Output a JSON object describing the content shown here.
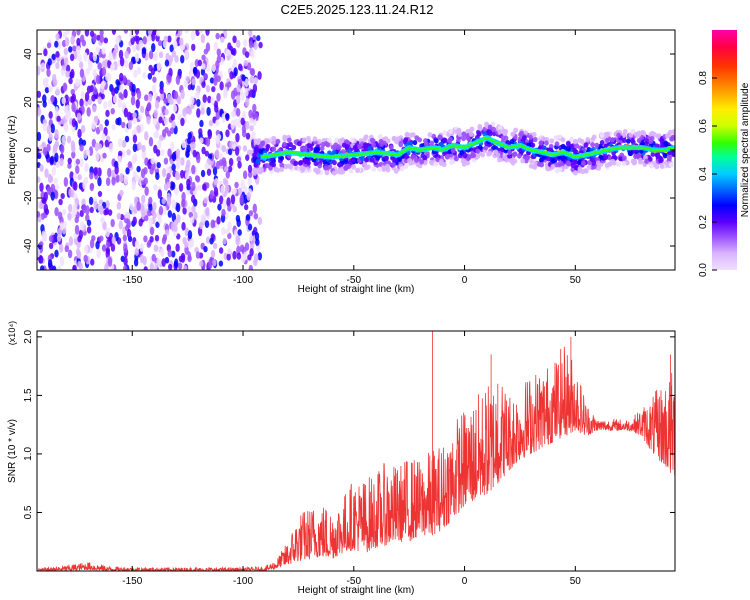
{
  "title": "C2E5.2025.123.11.24.R12",
  "chart_data": [
    {
      "type": "heatmap",
      "xlabel": "Height of straight line (km)",
      "ylabel": "Frequency (Hz)",
      "xlim": [
        -193,
        95
      ],
      "ylim": [
        -50,
        50
      ],
      "xticks": [
        -150,
        -100,
        -50,
        0,
        50
      ],
      "yticks": [
        -40,
        -20,
        0,
        20,
        40
      ],
      "grid": false,
      "colorbar": {
        "label": "Normalized spectral amplitude",
        "range": [
          0,
          1
        ],
        "ticks": [
          "0.0",
          "0.2",
          "0.4",
          "0.6",
          "0.8"
        ],
        "colors": [
          "#f0e0ff",
          "#d9b3ff",
          "#9a4dff",
          "#5a00ff",
          "#0000ff",
          "#0060ff",
          "#00ccff",
          "#00ff99",
          "#33ff00",
          "#ccff00",
          "#ffee00",
          "#ff9900",
          "#ff3300",
          "#ff0044",
          "#ff00aa"
        ]
      },
      "ridge": {
        "description_values": "peak frequency (Hz) vs height (km)",
        "x": [
          -92,
          -85,
          -80,
          -70,
          -60,
          -50,
          -40,
          -30,
          -25,
          -20,
          -15,
          -10,
          -5,
          0,
          5,
          10,
          15,
          20,
          25,
          30,
          35,
          40,
          45,
          50,
          55,
          60,
          65,
          70,
          75,
          80,
          85,
          90,
          95
        ],
        "y": [
          -3,
          -2,
          -1,
          -2,
          -3,
          -2,
          -1,
          -2,
          1,
          0,
          1,
          0,
          2,
          1,
          3,
          5,
          3,
          1,
          2,
          0,
          -1,
          -2,
          -1,
          -3,
          -2,
          -1,
          0,
          1,
          1,
          1,
          0,
          0,
          1
        ]
      }
    },
    {
      "type": "line",
      "xlabel": "Height of straight line (km)",
      "ylabel": "SNR (10 * v/v)",
      "multiplier": "(x10⁴)",
      "xlim": [
        -193,
        95
      ],
      "ylim": [
        0,
        2.05
      ],
      "xticks": [
        -150,
        -100,
        -50,
        0,
        50
      ],
      "yticks": [
        "0.5",
        "1.0",
        "1.5",
        "2.0"
      ],
      "grid": false,
      "color": "#ee3333",
      "envelope": {
        "x": [
          -193,
          -180,
          -170,
          -160,
          -140,
          -120,
          -100,
          -90,
          -85,
          -80,
          -75,
          -70,
          -65,
          -60,
          -55,
          -50,
          -45,
          -40,
          -35,
          -30,
          -25,
          -20,
          -15,
          -10,
          -5,
          0,
          5,
          10,
          15,
          20,
          25,
          30,
          35,
          40,
          45,
          50,
          55,
          60,
          65,
          70,
          75,
          80,
          85,
          90,
          95
        ],
        "low": [
          0.0,
          0.0,
          0.01,
          0.0,
          0.0,
          0.0,
          0.0,
          0.0,
          0.02,
          0.05,
          0.08,
          0.1,
          0.12,
          0.1,
          0.15,
          0.18,
          0.15,
          0.2,
          0.22,
          0.25,
          0.25,
          0.3,
          0.3,
          0.35,
          0.45,
          0.55,
          0.6,
          0.65,
          0.75,
          0.85,
          0.95,
          1.0,
          1.05,
          1.1,
          1.15,
          1.2,
          1.15,
          1.2,
          1.2,
          1.2,
          1.2,
          1.15,
          1.0,
          0.9,
          0.8
        ],
        "high": [
          0.02,
          0.05,
          0.08,
          0.04,
          0.03,
          0.03,
          0.03,
          0.04,
          0.1,
          0.25,
          0.5,
          0.55,
          0.6,
          0.55,
          0.65,
          0.8,
          0.8,
          0.85,
          0.95,
          0.9,
          1.0,
          0.95,
          1.05,
          1.1,
          1.3,
          1.4,
          1.5,
          1.6,
          1.7,
          1.55,
          1.6,
          1.7,
          1.75,
          1.8,
          1.95,
          1.8,
          1.45,
          1.3,
          1.3,
          1.3,
          1.3,
          1.4,
          1.5,
          1.65,
          1.75
        ]
      },
      "spikes": [
        {
          "x": -14.5,
          "y": 2.05
        },
        {
          "x": 12,
          "y": 1.85
        },
        {
          "x": 15,
          "y": 1.6
        },
        {
          "x": 48,
          "y": 2.0
        },
        {
          "x": 93,
          "y": 1.85
        }
      ]
    }
  ]
}
